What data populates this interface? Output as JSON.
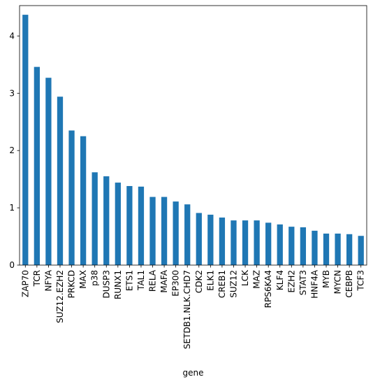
{
  "chart_data": {
    "type": "bar",
    "xlabel": "gene",
    "ylabel": "",
    "ylim": [
      0,
      4.53
    ],
    "yticks": [
      0,
      1,
      2,
      3,
      4
    ],
    "bar_color": "#1f77b4",
    "categories": [
      "ZAP70",
      "TCR",
      "NFYA",
      "SUZ12.EZH2",
      "PRKCD",
      "MAX",
      "p38",
      "DUSP3",
      "RUNX1",
      "ETS1",
      "TAL1",
      "RELA",
      "MAFA",
      "EP300",
      "SETDB1.NLK.CHD7",
      "CDK2",
      "ELK1",
      "CREB1",
      "SUZ12",
      "LCK",
      "MAZ",
      "RPS6KA4",
      "KLF4",
      "EZH2",
      "STAT3",
      "HNF4A",
      "MYB",
      "MYCN",
      "CEBPB",
      "TCF3"
    ],
    "values": [
      4.37,
      3.46,
      3.27,
      2.94,
      2.35,
      2.25,
      1.62,
      1.55,
      1.44,
      1.38,
      1.37,
      1.19,
      1.19,
      1.11,
      1.06,
      0.91,
      0.88,
      0.83,
      0.78,
      0.78,
      0.78,
      0.74,
      0.71,
      0.67,
      0.66,
      0.6,
      0.55,
      0.55,
      0.54,
      0.51
    ]
  }
}
